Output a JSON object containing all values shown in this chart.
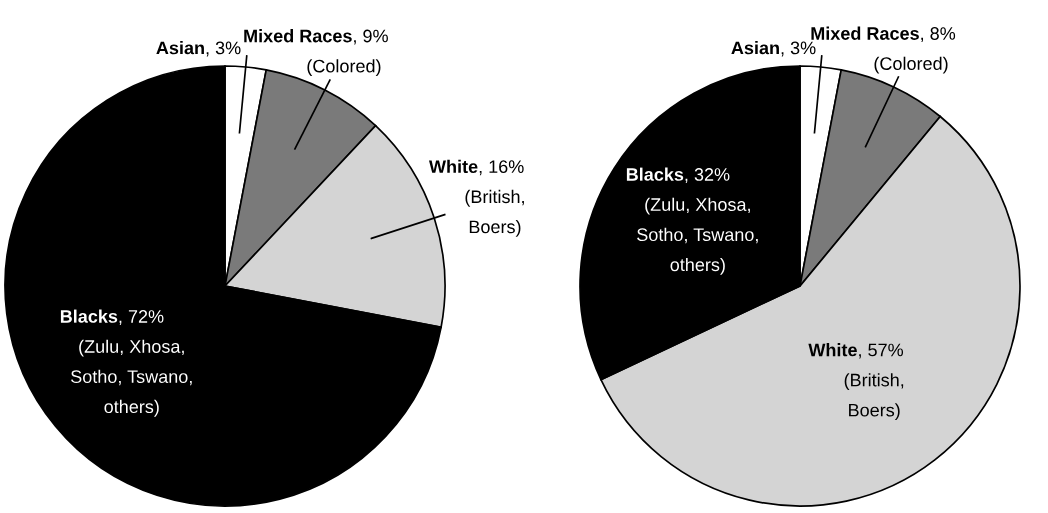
{
  "chart_data": [
    {
      "type": "pie",
      "categories": [
        "Asian",
        "Mixed Races\n(Colored)",
        "White\n(British,\nBoers)",
        "Blacks\n(Zulu, Xhosa,\nSotho, Tswano,\nothers)"
      ],
      "values": [
        3,
        9,
        16,
        72
      ],
      "colors": [
        "#ffffff",
        "#7a7a7a",
        "#d4d4d4",
        "#000000"
      ],
      "value_labels": [
        ", 3%",
        ", 9%",
        ", 16%",
        ", 72%"
      ]
    },
    {
      "type": "pie",
      "categories": [
        "Asian",
        "Mixed Races\n(Colored)",
        "White\n(British,\nBoers)",
        "Blacks\n(Zulu, Xhosa,\nSotho, Tswano,\nothers)"
      ],
      "values": [
        3,
        8,
        57,
        32
      ],
      "colors": [
        "#ffffff",
        "#7a7a7a",
        "#d4d4d4",
        "#000000"
      ],
      "value_labels": [
        ", 3%",
        ", 8%",
        ", 57%",
        ", 32%"
      ]
    }
  ]
}
